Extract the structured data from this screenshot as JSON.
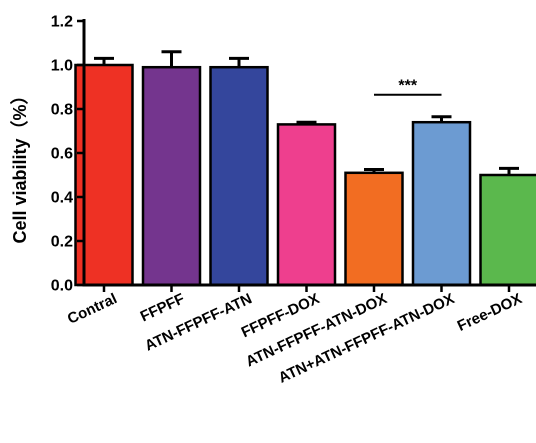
{
  "chart_data": {
    "type": "bar",
    "title": "",
    "xlabel": "",
    "ylabel": "Cell viability（%）",
    "ylim": [
      0,
      1.2
    ],
    "yticks": [
      "0.0",
      "0.2",
      "0.4",
      "0.6",
      "0.8",
      "1.0",
      "1.2"
    ],
    "grid": false,
    "legend": "none",
    "categories": [
      "Contral",
      "FFPFF",
      "ATN-FFPFF-ATN",
      "FFPFF-DOX",
      "ATN-FFPFF-ATN-DOX",
      "ATN+ATN-FFPFF-ATN-DOX",
      "Free-DOX"
    ],
    "values": [
      1.0,
      0.99,
      0.99,
      0.73,
      0.51,
      0.74,
      0.5
    ],
    "errors": [
      0.03,
      0.07,
      0.04,
      0.01,
      0.015,
      0.025,
      0.03
    ],
    "colors": [
      "#ee3124",
      "#74358e",
      "#34469c",
      "#ee3f8e",
      "#f26d22",
      "#6c9bd2",
      "#5bb84d"
    ],
    "annotations": [
      {
        "text": "***",
        "between": [
          "ATN-FFPFF-ATN-DOX",
          "ATN+ATN-FFPFF-ATN-DOX"
        ],
        "y": 0.865
      }
    ]
  }
}
